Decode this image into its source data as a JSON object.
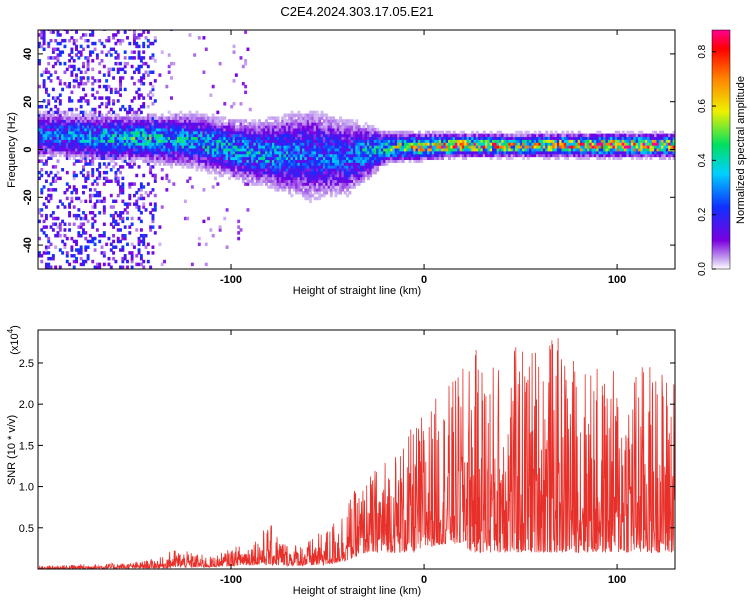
{
  "figure": {
    "title": "C2E4.2024.303.17.05.E21"
  },
  "colorbar": {
    "label": "Normalized spectral amplitude",
    "ticks": [
      "0.0",
      "0.2",
      "0.4",
      "0.6",
      "0.8"
    ],
    "tick_values": [
      0.0,
      0.2,
      0.4,
      0.6,
      0.8
    ],
    "range": [
      0,
      0.88
    ],
    "colormap": "rainbow (white-violet-blue-cyan-green-yellow-red)",
    "colors": [
      "#ffffff",
      "#c8a8f0",
      "#7a00e0",
      "#1030ff",
      "#00d0ff",
      "#00e060",
      "#f0f000",
      "#ff8000",
      "#ff0000",
      "#ff0090"
    ]
  },
  "chart_data": [
    {
      "type": "heatmap",
      "title": "",
      "xlabel": "Height of straight line (km)",
      "ylabel": "Frequency (Hz)",
      "xlim": [
        -200,
        130
      ],
      "ylim": [
        -50,
        50
      ],
      "xticks": [
        -100,
        0,
        100
      ],
      "xtick_labels": [
        "-100",
        "0",
        "100"
      ],
      "yticks": [
        -40,
        -20,
        0,
        20,
        40
      ],
      "ytick_labels": [
        "-40",
        "-20",
        "0",
        "20",
        "40"
      ],
      "grid": false,
      "ridge": [
        {
          "x": -180,
          "y": 5,
          "halfwidth": 6,
          "peak": 0.35
        },
        {
          "x": -150,
          "y": 4,
          "halfwidth": 6,
          "peak": 0.45
        },
        {
          "x": -120,
          "y": 3,
          "halfwidth": 7,
          "peak": 0.4
        },
        {
          "x": -90,
          "y": -2,
          "halfwidth": 8,
          "peak": 0.4
        },
        {
          "x": -60,
          "y": -3,
          "halfwidth": 12,
          "peak": 0.3
        },
        {
          "x": -40,
          "y": -4,
          "halfwidth": 10,
          "peak": 0.3
        },
        {
          "x": -20,
          "y": 0,
          "halfwidth": 4,
          "peak": 0.55
        },
        {
          "x": 15,
          "y": 1,
          "halfwidth": 3,
          "peak": 0.8
        },
        {
          "x": 50,
          "y": 1,
          "halfwidth": 3,
          "peak": 0.65
        },
        {
          "x": 95,
          "y": 1,
          "halfwidth": 3,
          "peak": 0.85
        },
        {
          "x": 125,
          "y": 1,
          "halfwidth": 3,
          "peak": 0.8
        }
      ]
    },
    {
      "type": "line",
      "title": "",
      "xlabel": "Height of straight line (km)",
      "ylabel": "SNR (10 * v/v)",
      "y_multiplier": "(x10",
      "y_multiplier_exp": "4",
      "y_multiplier_close": ")",
      "xlim": [
        -200,
        130
      ],
      "ylim": [
        0,
        2.9
      ],
      "y_scale": 10000,
      "xticks": [
        -100,
        0,
        100
      ],
      "xtick_labels": [
        "-100",
        "0",
        "100"
      ],
      "yticks": [
        0.5,
        1.0,
        1.5,
        2.0,
        2.5
      ],
      "ytick_labels": [
        "0.5",
        "1.0",
        "1.5",
        "2.0",
        "2.5"
      ],
      "grid": false,
      "series": [
        {
          "color": "#e8302a",
          "x": [
            -200,
            -150,
            -135,
            -130,
            -110,
            -100,
            -90,
            -80,
            -70,
            -60,
            -50,
            -40,
            -30,
            -20,
            -10,
            -5,
            0,
            10,
            20,
            25,
            35,
            50,
            65,
            80,
            95,
            105,
            120,
            130
          ],
          "envelope_y": [
            0.04,
            0.08,
            0.15,
            0.25,
            0.15,
            0.25,
            0.35,
            0.55,
            0.3,
            0.35,
            0.5,
            0.85,
            1.1,
            1.4,
            1.6,
            1.75,
            1.95,
            2.2,
            2.45,
            2.7,
            2.6,
            2.75,
            2.9,
            2.6,
            2.4,
            2.55,
            2.55,
            2.5
          ],
          "baseline_y": [
            0.0,
            0.01,
            0.01,
            0.02,
            0.02,
            0.04,
            0.05,
            0.05,
            0.04,
            0.04,
            0.05,
            0.1,
            0.2,
            0.2,
            0.2,
            0.2,
            0.25,
            0.3,
            0.3,
            0.2,
            0.2,
            0.2,
            0.2,
            0.2,
            0.2,
            0.2,
            0.2,
            0.2
          ]
        }
      ]
    }
  ]
}
